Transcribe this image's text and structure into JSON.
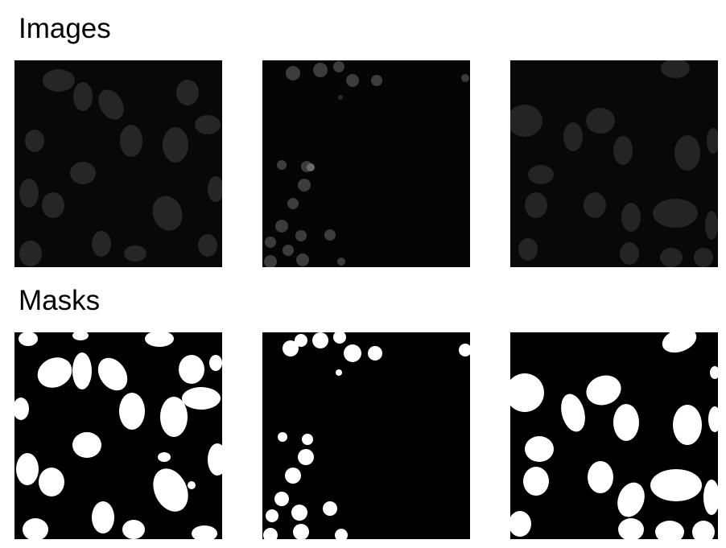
{
  "headings": {
    "images": "Images",
    "masks": "Masks"
  },
  "colors": {
    "background": "#ffffff",
    "panel": "#000000",
    "mask_fill": "#ffffff"
  },
  "panels": {
    "images": [
      "microscopy-nuclei-image-1",
      "microscopy-nuclei-image-2",
      "microscopy-nuclei-image-3"
    ],
    "masks": [
      "segmentation-mask-1",
      "segmentation-mask-2",
      "segmentation-mask-3"
    ]
  }
}
